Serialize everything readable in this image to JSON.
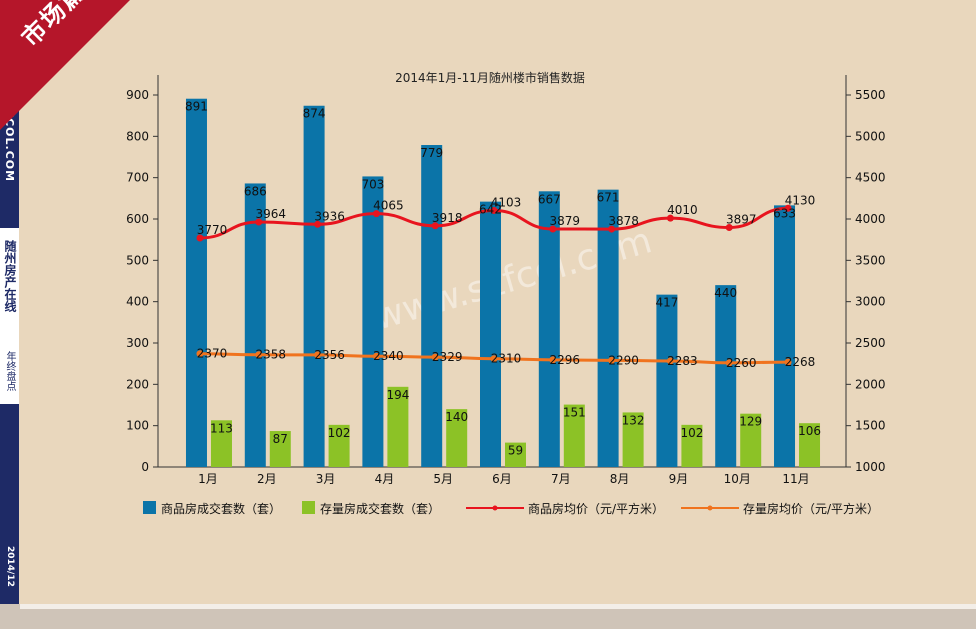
{
  "banner": {
    "corner": "市场篇",
    "url": "WWW.SZFCOL.COM",
    "brand": "随州房产在线",
    "sub": "年终盘点",
    "date": "2014/12"
  },
  "watermark": "www.szfcol.com",
  "colors": {
    "bar1": "#0b74a8",
    "bar2": "#8cc226",
    "line1": "#e8141e",
    "line2": "#f0731e"
  },
  "chart_data": {
    "type": "bar",
    "title": "2014年1月-11月随州楼市销售数据",
    "categories": [
      "1月",
      "2月",
      "3月",
      "4月",
      "5月",
      "6月",
      "7月",
      "8月",
      "9月",
      "10月",
      "11月"
    ],
    "series": [
      {
        "name": "商品房成交套数（套）",
        "type": "bar",
        "axis": "left",
        "values": [
          891,
          686,
          874,
          703,
          779,
          642,
          667,
          671,
          417,
          440,
          633
        ]
      },
      {
        "name": "存量房成交套数（套）",
        "type": "bar",
        "axis": "left",
        "values": [
          113,
          87,
          102,
          194,
          140,
          59,
          151,
          132,
          102,
          129,
          106
        ]
      },
      {
        "name": "商品房均价（元/平方米）",
        "type": "line",
        "axis": "right",
        "values": [
          3770,
          3964,
          3936,
          4065,
          3918,
          4103,
          3879,
          3878,
          4010,
          3897,
          4130
        ]
      },
      {
        "name": "存量房均价（元/平方米）",
        "type": "line",
        "axis": "right",
        "values": [
          2370,
          2358,
          2356,
          2340,
          2329,
          2310,
          2296,
          2290,
          2283,
          2260,
          2268
        ]
      }
    ],
    "y_left": {
      "min": 0,
      "max": 900,
      "ticks": [
        0,
        100,
        200,
        300,
        400,
        500,
        600,
        700,
        800,
        900
      ]
    },
    "y_right": {
      "min": 1000,
      "max": 5500,
      "ticks": [
        1000,
        1500,
        2000,
        2500,
        3000,
        3500,
        4000,
        4500,
        5000,
        5500
      ]
    },
    "legend": "bottom"
  }
}
